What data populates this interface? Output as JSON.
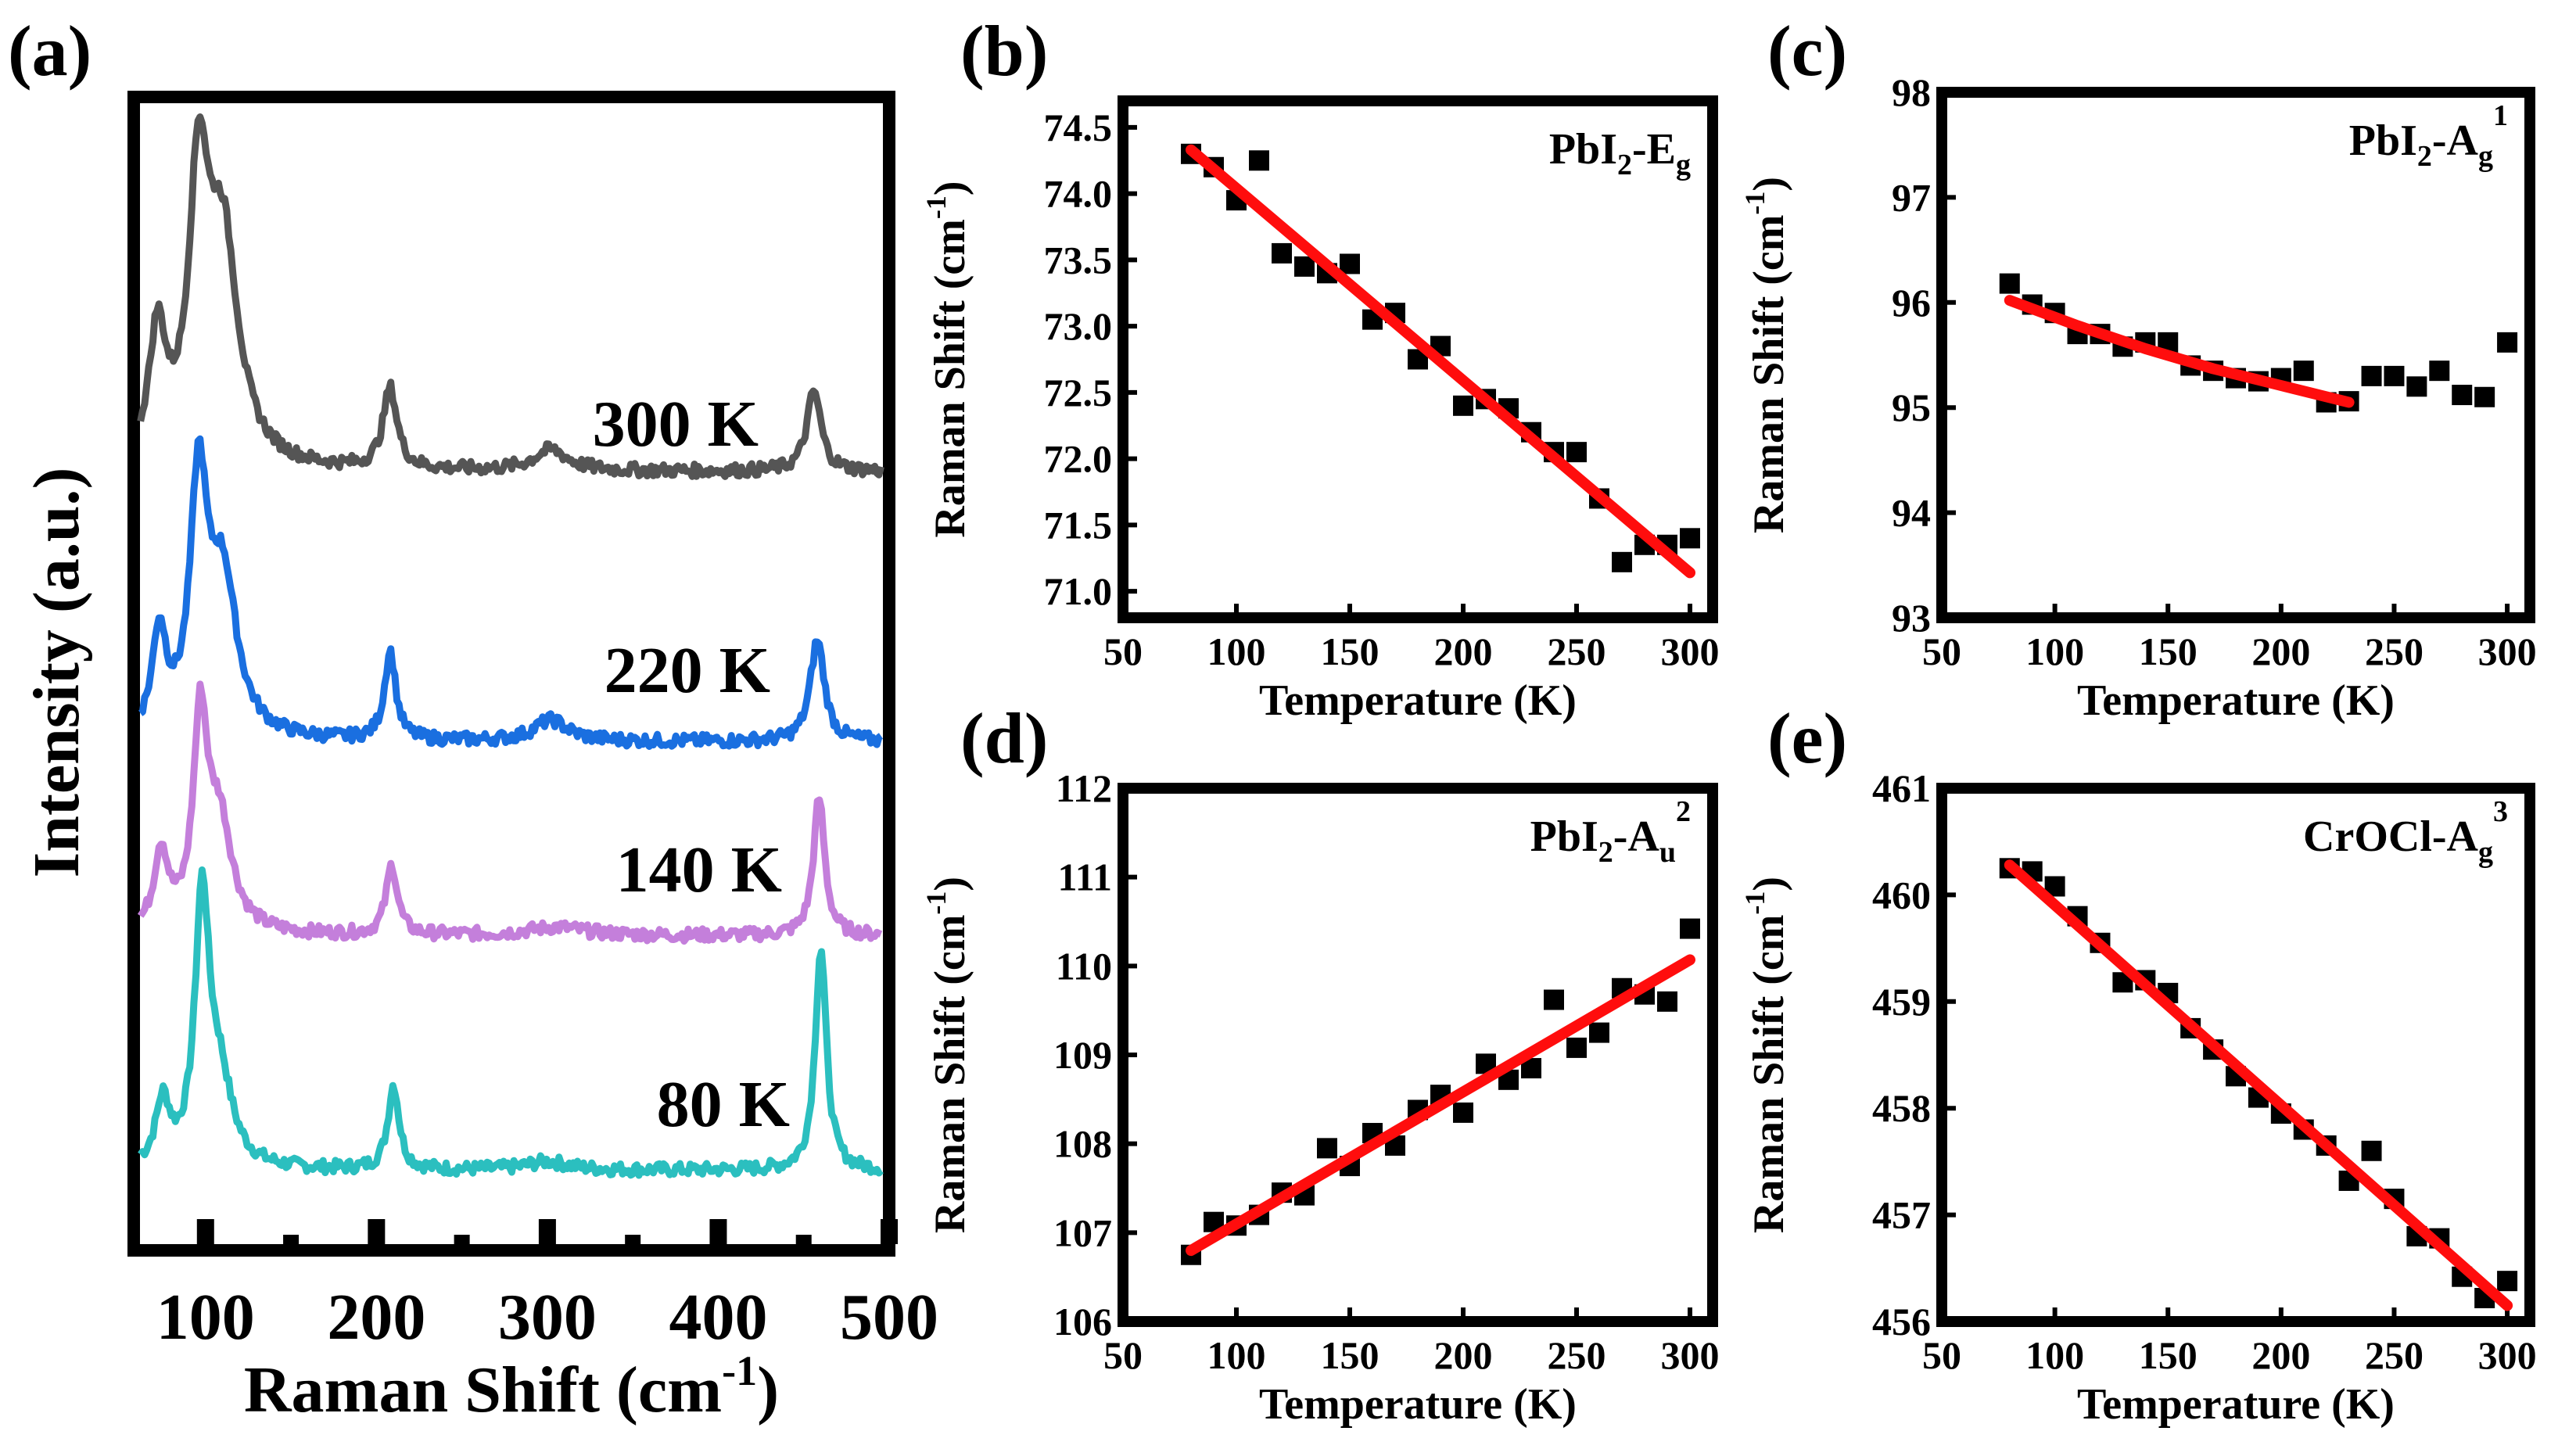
{
  "chart_data": [
    {
      "panel": "(a)",
      "type": "line",
      "xlabel_main": "Raman Shift (cm",
      "xlabel_sup": "-1",
      "xlabel_end": ")",
      "ylabel": "Intensity (a.u.)",
      "xlim": [
        58,
        500
      ],
      "xticks": [
        "100",
        "200",
        "300",
        "400",
        "500"
      ],
      "xtick_values": [
        100,
        200,
        300,
        400,
        500
      ],
      "minor_xticks": [
        150,
        250,
        350,
        450
      ],
      "series": [
        {
          "name": "80 K",
          "color": "#2bbfbf",
          "peaks": [
            [
              75,
              0.3,
              5
            ],
            [
              98,
              1.22,
              5
            ],
            [
              108,
              0.4,
              9
            ],
            [
              210,
              0.4,
              4
            ],
            [
              300,
              0.04,
              15
            ],
            [
              460,
              1.05,
              4
            ]
          ],
          "baseline": 0.03
        },
        {
          "name": "140 K",
          "color": "#c47fdb",
          "peaks": [
            [
              74,
              0.38,
              5
            ],
            [
              97,
              0.95,
              5
            ],
            [
              108,
              0.52,
              9
            ],
            [
              209,
              0.33,
              4
            ],
            [
              305,
              0.04,
              20
            ],
            [
              459,
              0.65,
              4
            ]
          ],
          "baseline": 0.03
        },
        {
          "name": "220 K",
          "color": "#1a6fe0",
          "peaks": [
            [
              73,
              0.48,
              5
            ],
            [
              96,
              1.15,
              6
            ],
            [
              110,
              0.75,
              10
            ],
            [
              208,
              0.42,
              4
            ],
            [
              302,
              0.1,
              12
            ],
            [
              458,
              0.48,
              5
            ]
          ],
          "baseline": 0.06
        },
        {
          "name": "300 K",
          "color": "#555555",
          "peaks": [
            [
              72,
              0.6,
              6
            ],
            [
              96,
              1.25,
              7
            ],
            [
              110,
              1.05,
              11
            ],
            [
              208,
              0.38,
              5
            ],
            [
              302,
              0.1,
              12
            ],
            [
              456,
              0.38,
              5
            ]
          ],
          "baseline": 0.08
        }
      ]
    },
    {
      "panel": "(b)",
      "type": "scatter",
      "xlabel": "Temperature (K)",
      "ylabel": "Raman Shift (cm",
      "ylabel_sup": "-1",
      "ylabel_end": ")",
      "annotation": "PbI",
      "annotation_sub1": "2",
      "annotation_mid": "-E",
      "annotation_sub2": "g",
      "annotation_sup": "",
      "xlim": [
        50,
        310
      ],
      "ylim": [
        70.8,
        74.7
      ],
      "xticks": [
        50,
        100,
        150,
        200,
        250,
        300
      ],
      "yticks": [
        "71.0",
        "71.5",
        "72.0",
        "72.5",
        "73.0",
        "73.5",
        "74.0",
        "74.5"
      ],
      "ytick_values": [
        71.0,
        71.5,
        72.0,
        72.5,
        73.0,
        73.5,
        74.0,
        74.5
      ],
      "x": [
        80,
        90,
        100,
        110,
        120,
        130,
        140,
        150,
        160,
        170,
        180,
        190,
        200,
        210,
        220,
        230,
        240,
        250,
        260,
        270,
        280,
        290,
        300
      ],
      "y": [
        74.3,
        74.2,
        73.95,
        74.25,
        73.55,
        73.45,
        73.4,
        73.47,
        73.05,
        73.1,
        72.75,
        72.85,
        72.4,
        72.45,
        72.38,
        72.2,
        72.05,
        72.05,
        71.7,
        71.22,
        71.35,
        71.35,
        71.4
      ],
      "fit": [
        [
          80,
          74.33
        ],
        [
          300,
          71.14
        ]
      ]
    },
    {
      "panel": "(c)",
      "type": "scatter",
      "xlabel": "Temperature (K)",
      "ylabel": "Raman Shift (cm",
      "ylabel_sup": "-1",
      "ylabel_end": ")",
      "annotation": "PbI",
      "annotation_sub1": "2",
      "annotation_mid": "-A",
      "annotation_sub2": "g",
      "annotation_sup": "1",
      "xlim": [
        50,
        310
      ],
      "ylim": [
        93,
        98
      ],
      "xticks": [
        50,
        100,
        150,
        200,
        250,
        300
      ],
      "yticks": [
        "93",
        "94",
        "95",
        "96",
        "97",
        "98"
      ],
      "ytick_values": [
        93,
        94,
        95,
        96,
        97,
        98
      ],
      "x": [
        80,
        90,
        100,
        110,
        120,
        130,
        140,
        150,
        160,
        170,
        180,
        190,
        200,
        210,
        220,
        230,
        240,
        250,
        260,
        270,
        280,
        290,
        300
      ],
      "y": [
        96.18,
        95.98,
        95.9,
        95.7,
        95.7,
        95.58,
        95.62,
        95.62,
        95.4,
        95.35,
        95.28,
        95.25,
        95.28,
        95.35,
        95.05,
        95.06,
        95.3,
        95.3,
        95.2,
        95.35,
        95.12,
        95.1,
        95.62
      ],
      "fit": [
        [
          80,
          96.02
        ],
        [
          110,
          95.78
        ],
        [
          140,
          95.56
        ],
        [
          170,
          95.37
        ],
        [
          200,
          95.21
        ],
        [
          230,
          95.05
        ]
      ]
    },
    {
      "panel": "(d)",
      "type": "scatter",
      "xlabel": "Temperature (K)",
      "ylabel": "Raman Shift (cm",
      "ylabel_sup": "-1",
      "ylabel_end": ")",
      "annotation": "PbI",
      "annotation_sub1": "2",
      "annotation_mid": "-A",
      "annotation_sub2": "u",
      "annotation_sup": "2",
      "xlim": [
        50,
        310
      ],
      "ylim": [
        106,
        112
      ],
      "xticks": [
        50,
        100,
        150,
        200,
        250,
        300
      ],
      "yticks": [
        "106",
        "107",
        "108",
        "109",
        "110",
        "111",
        "112"
      ],
      "ytick_values": [
        106,
        107,
        108,
        109,
        110,
        111,
        112
      ],
      "x": [
        80,
        90,
        100,
        110,
        120,
        130,
        140,
        150,
        160,
        170,
        180,
        190,
        200,
        210,
        220,
        230,
        240,
        250,
        260,
        270,
        280,
        290,
        300
      ],
      "y": [
        106.75,
        107.12,
        107.08,
        107.2,
        107.45,
        107.42,
        107.95,
        107.75,
        108.12,
        107.98,
        108.38,
        108.55,
        108.35,
        108.9,
        108.72,
        108.85,
        109.62,
        109.08,
        109.25,
        109.75,
        109.68,
        109.6,
        110.42
      ],
      "fit": [
        [
          80,
          106.8
        ],
        [
          300,
          110.07
        ]
      ]
    },
    {
      "panel": "(e)",
      "type": "scatter",
      "xlabel": "Temperature (K)",
      "ylabel": "Raman Shift (cm",
      "ylabel_sup": "-1",
      "ylabel_end": ")",
      "annotation": "CrOCl-A",
      "annotation_sub1": "",
      "annotation_mid": "",
      "annotation_sub2": "g",
      "annotation_sup": "3",
      "xlim": [
        50,
        310
      ],
      "ylim": [
        456,
        461
      ],
      "xticks": [
        50,
        100,
        150,
        200,
        250,
        300
      ],
      "yticks": [
        "456",
        "457",
        "458",
        "459",
        "460",
        "461"
      ],
      "ytick_values": [
        456,
        457,
        458,
        459,
        460,
        461
      ],
      "x": [
        80,
        90,
        100,
        110,
        120,
        130,
        140,
        150,
        160,
        170,
        180,
        190,
        200,
        210,
        220,
        230,
        240,
        250,
        260,
        270,
        280,
        290,
        300
      ],
      "y": [
        460.25,
        460.22,
        460.08,
        459.8,
        459.55,
        459.18,
        459.2,
        459.08,
        458.75,
        458.55,
        458.3,
        458.1,
        457.95,
        457.8,
        457.65,
        457.32,
        457.6,
        457.15,
        456.8,
        456.78,
        456.42,
        456.22,
        456.38
      ],
      "fit": [
        [
          80,
          460.28
        ],
        [
          300,
          456.15
        ]
      ]
    }
  ]
}
